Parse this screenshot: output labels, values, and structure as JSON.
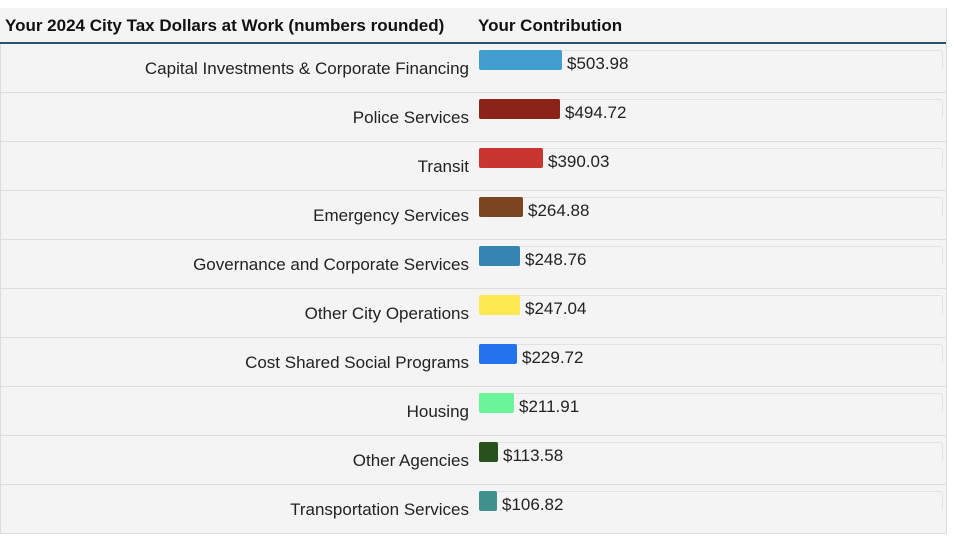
{
  "header": {
    "category_title": "Your 2024 City Tax Dollars at Work (numbers rounded)",
    "value_title": "Your Contribution"
  },
  "chart_data": {
    "type": "bar",
    "orientation": "horizontal",
    "title": "Your 2024 City Tax Dollars at Work (numbers rounded)",
    "value_label": "Your Contribution",
    "categories": [
      "Capital Investments & Corporate Financing",
      "Police Services",
      "Transit",
      "Emergency Services",
      "Governance and Corporate Services",
      "Other City Operations",
      "Cost Shared Social Programs",
      "Housing",
      "Other Agencies",
      "Transportation Services"
    ],
    "values": [
      503.98,
      494.72,
      390.03,
      264.88,
      248.76,
      247.04,
      229.72,
      211.91,
      113.58,
      106.82
    ],
    "value_labels": [
      "$503.98",
      "$494.72",
      "$390.03",
      "$264.88",
      "$248.76",
      "$247.04",
      "$229.72",
      "$211.91",
      "$113.58",
      "$106.82"
    ],
    "colors": [
      "#429ed1",
      "#8b2318",
      "#c93631",
      "#7a4520",
      "#3585b3",
      "#fbe94f",
      "#2572ef",
      "#6af59b",
      "#27521c",
      "#40918e"
    ]
  }
}
